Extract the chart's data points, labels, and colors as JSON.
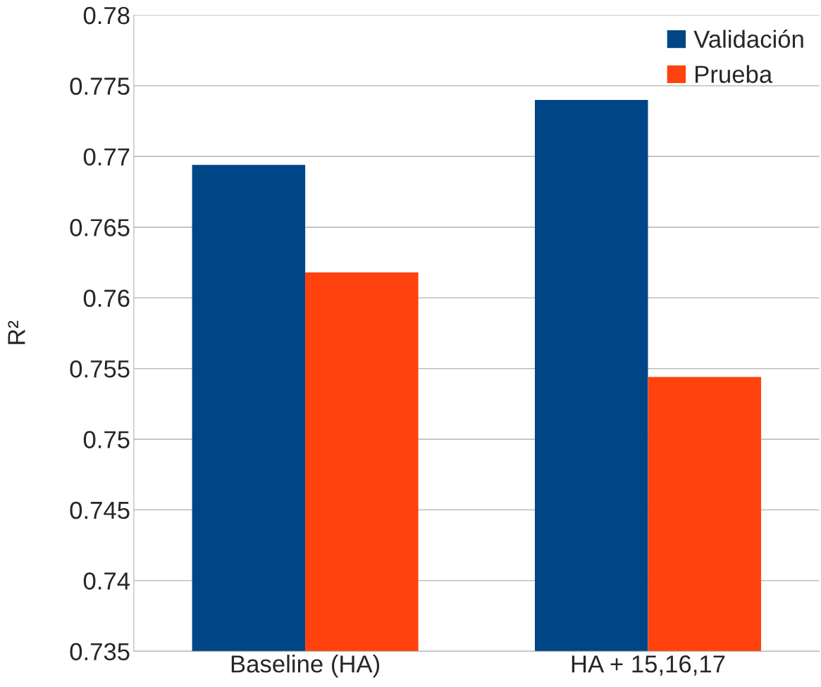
{
  "chart_data": {
    "type": "bar",
    "ylabel": "R²",
    "categories": [
      "Baseline (HA)",
      "HA + 15,16,17"
    ],
    "series": [
      {
        "name": "Validación",
        "color": "#004586",
        "values": [
          0.7694,
          0.774
        ]
      },
      {
        "name": "Prueba",
        "color": "#ff420e",
        "values": [
          0.7618,
          0.7544
        ]
      }
    ],
    "ylim": [
      0.735,
      0.78
    ],
    "yticks": [
      0.735,
      0.74,
      0.745,
      0.75,
      0.755,
      0.76,
      0.765,
      0.77,
      0.775,
      0.78
    ],
    "grid": "y",
    "legend": "top right"
  }
}
